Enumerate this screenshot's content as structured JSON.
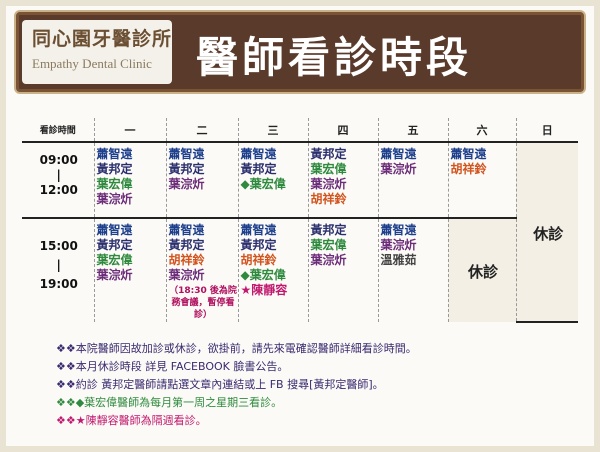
{
  "header": {
    "logo_title": "同心園牙醫診所",
    "logo_subtitle": "Empathy Dental Clinic",
    "title": "醫師看診時段"
  },
  "table": {
    "corner_label": "看診時間",
    "days": [
      "一",
      "二",
      "三",
      "四",
      "五",
      "六",
      "日"
    ],
    "am": {
      "time_start": "09:00",
      "time_dash": "|",
      "time_end": "12:00",
      "mon": [
        "蕭智遠",
        "黃邦定",
        "葉宏偉",
        "葉淙炘"
      ],
      "tue": [
        "蕭智遠",
        "黃邦定",
        "葉淙炘"
      ],
      "wed": [
        "蕭智遠",
        "黃邦定",
        "◆葉宏偉"
      ],
      "thu": [
        "黃邦定",
        "葉宏偉",
        "葉淙炘",
        "胡祥鈴"
      ],
      "fri": [
        "蕭智遠",
        "葉淙炘"
      ],
      "sat": [
        "蕭智遠",
        "胡祥鈴"
      ]
    },
    "pm": {
      "time_start": "15:00",
      "time_dash": "|",
      "time_end": "19:00",
      "mon": [
        "蕭智遠",
        "黃邦定",
        "葉宏偉",
        "葉淙炘"
      ],
      "tue": [
        "蕭智遠",
        "黃邦定",
        "胡祥鈴",
        "葉淙炘"
      ],
      "tue_note": "（18:30 後為院務會議，暫停看診）",
      "wed": [
        "蕭智遠",
        "黃邦定",
        "胡祥鈴",
        "◆葉宏偉",
        "★陳靜容"
      ],
      "thu": [
        "黃邦定",
        "葉宏偉",
        "葉淙炘"
      ],
      "fri": [
        "蕭智遠",
        "葉淙炘",
        "溫雅茹"
      ],
      "sat_rest": "休診"
    },
    "sun_rest": "休診"
  },
  "notes": [
    "❖❖本院醫師因故加診或休診，欲掛前，請先來電確認醫師詳細看診時間。",
    "❖❖本月休診時段 詳見 FACEBOOK 臉書公告。",
    "❖❖約診 黃邦定醫師請點選文章內連結或上 FB 搜尋[黃邦定醫師]。",
    "❖❖◆葉宏偉醫師為每月第一周之星期三看診。",
    "❖❖★陳靜容醫師為隔週看診。"
  ]
}
